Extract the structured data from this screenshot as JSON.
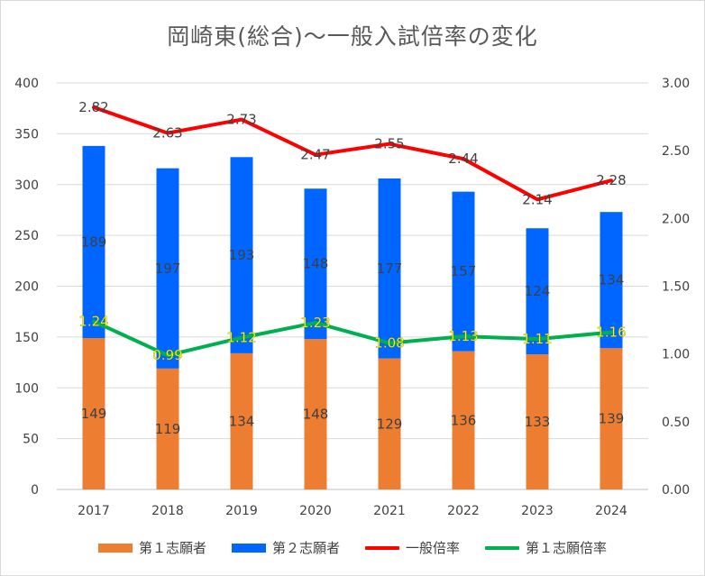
{
  "chart_data": {
    "type": "bar",
    "title": "岡崎東(総合)〜一般入試倍率の変化",
    "categories": [
      "2017",
      "2018",
      "2019",
      "2020",
      "2021",
      "2022",
      "2023",
      "2024"
    ],
    "series": [
      {
        "name": "第１志願者",
        "kind": "stacked-bar",
        "axis": "left",
        "color": "#ED7D31",
        "values": [
          149,
          119,
          134,
          148,
          129,
          136,
          133,
          139
        ]
      },
      {
        "name": "第２志願者",
        "kind": "stacked-bar",
        "axis": "left",
        "color": "#0066FF",
        "values": [
          189,
          197,
          193,
          148,
          177,
          157,
          124,
          134
        ]
      },
      {
        "name": "一般倍率",
        "kind": "line",
        "axis": "right",
        "color": "#FF0000",
        "values": [
          2.82,
          2.63,
          2.73,
          2.47,
          2.55,
          2.44,
          2.14,
          2.28
        ]
      },
      {
        "name": "第１志願倍率",
        "kind": "line",
        "axis": "right",
        "color": "#00B050",
        "values": [
          1.24,
          0.99,
          1.12,
          1.23,
          1.08,
          1.13,
          1.11,
          1.16
        ]
      }
    ],
    "y_left": {
      "min": 0,
      "max": 400,
      "step": 50,
      "ticks": [
        "0",
        "50",
        "100",
        "150",
        "200",
        "250",
        "300",
        "350",
        "400"
      ]
    },
    "y_right": {
      "min": 0,
      "max": 3,
      "step": 0.5,
      "ticks": [
        "0.00",
        "0.50",
        "1.00",
        "1.50",
        "2.00",
        "2.50",
        "3.00"
      ]
    },
    "grid": true,
    "legend_position": "bottom"
  }
}
